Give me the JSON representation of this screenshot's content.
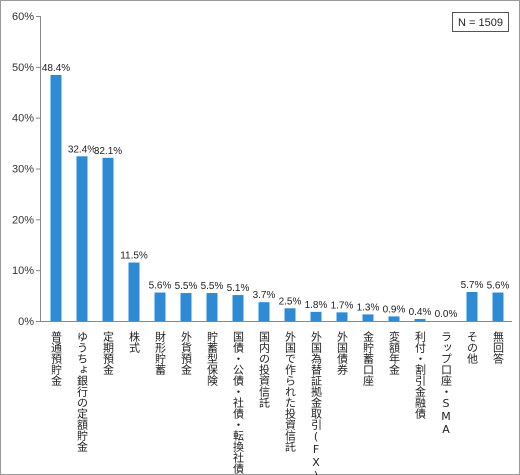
{
  "chart_data": {
    "type": "bar",
    "title": "",
    "xlabel": "",
    "ylabel": "",
    "ylim": [
      0,
      60
    ],
    "yticks": [
      "0%",
      "10%",
      "20%",
      "30%",
      "40%",
      "50%",
      "60%"
    ],
    "grid": false,
    "legend": "none",
    "note": "N = 1509",
    "bar_color": "#2e8bd3",
    "categories": [
      "普通預貯金",
      "ゆうちょ銀行の定額貯金",
      "定期預金",
      "株式",
      "財形貯蓄",
      "外貨預金",
      "貯蓄型保険",
      "国債・公債・社債・転換社債",
      "国内の投資信託",
      "外国で作られた投資信託",
      "外国為替証拠金取引(FX)",
      "外国債券",
      "金貯蓄口座",
      "変額年金",
      "利付・割引金融債",
      "ラップ口座・SMA",
      "その他",
      "無回答"
    ],
    "values": [
      48.4,
      32.4,
      32.1,
      11.5,
      5.6,
      5.5,
      5.5,
      5.1,
      3.7,
      2.5,
      1.8,
      1.7,
      1.3,
      0.9,
      0.4,
      0.0,
      5.7,
      5.6
    ],
    "data_labels": [
      "48.4%",
      "32.4%",
      "32.1%",
      "11.5%",
      "5.6%",
      "5.5%",
      "5.5%",
      "5.1%",
      "3.7%",
      "2.5%",
      "1.8%",
      "1.7%",
      "1.3%",
      "0.9%",
      "0.4%",
      "0.0%",
      "5.7%",
      "5.6%"
    ]
  }
}
